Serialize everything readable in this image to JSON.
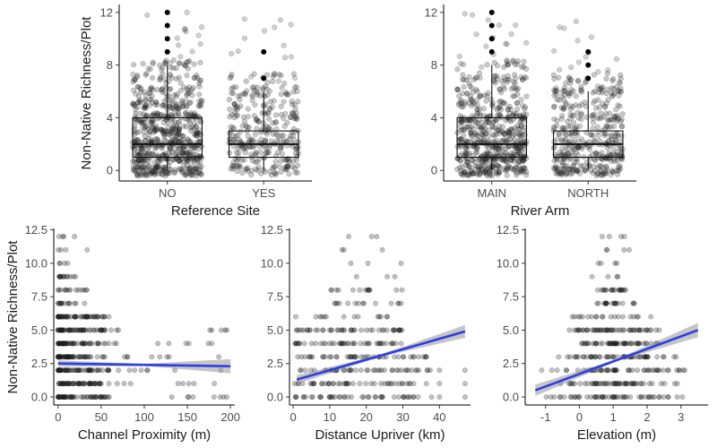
{
  "figure": {
    "shared_ylabel": "Non-Native Richness/Plot"
  },
  "chart_data": [
    {
      "id": "p1",
      "type": "box",
      "xlabel": "Reference Site",
      "ylabel": "Non-Native Richness/Plot",
      "ylim": [
        -0.8,
        12.6
      ],
      "yticks": [
        0,
        4,
        8,
        12
      ],
      "categories": [
        "NO",
        "YES"
      ],
      "boxes": [
        {
          "category": "NO",
          "q1": 1,
          "median": 2,
          "q3": 4,
          "whisker_low": 0,
          "whisker_high": 8,
          "outliers": [
            9,
            10,
            11,
            12
          ],
          "n_jitter": 700
        },
        {
          "category": "YES",
          "q1": 1,
          "median": 2,
          "q3": 3,
          "whisker_low": 0,
          "whisker_high": 6,
          "outliers": [
            7,
            9
          ],
          "n_jitter": 320
        }
      ]
    },
    {
      "id": "p2",
      "type": "box",
      "xlabel": "River Arm",
      "ylabel": "",
      "ylim": [
        -0.8,
        12.6
      ],
      "yticks": [
        0,
        4,
        8,
        12
      ],
      "categories": [
        "MAIN",
        "NORTH"
      ],
      "boxes": [
        {
          "category": "MAIN",
          "q1": 1,
          "median": 2,
          "q3": 4,
          "whisker_low": 0,
          "whisker_high": 8,
          "outliers": [
            9,
            10,
            11,
            12
          ],
          "n_jitter": 620
        },
        {
          "category": "NORTH",
          "q1": 1,
          "median": 2,
          "q3": 3,
          "whisker_low": 0,
          "whisker_high": 6,
          "outliers": [
            7,
            8,
            9
          ],
          "n_jitter": 420
        }
      ]
    },
    {
      "id": "p3",
      "type": "scatter",
      "xlabel": "Channel Proximity (m)",
      "ylabel": "Non-Native Richness/Plot",
      "xlim": [
        -5,
        205
      ],
      "ylim": [
        -0.6,
        12.6
      ],
      "xticks": [
        0,
        50,
        100,
        150,
        200
      ],
      "yticks": [
        0.0,
        2.5,
        5.0,
        7.5,
        10.0,
        12.5
      ],
      "ytick_labels": [
        "0.0",
        "2.5",
        "5.0",
        "7.5",
        "10.0",
        "12.5"
      ],
      "points_summary": {
        "x_range": [
          0,
          200
        ],
        "y_values": [
          0,
          1,
          2,
          3,
          4,
          5,
          6,
          7,
          8,
          9,
          10,
          11,
          12
        ],
        "dense_x_max": 55
      },
      "trend": {
        "x": [
          0,
          200
        ],
        "y": [
          2.5,
          2.3
        ],
        "ci_width_start": 0.15,
        "ci_width_end": 0.45
      },
      "trend_color": "#2a3ee6"
    },
    {
      "id": "p4",
      "type": "scatter",
      "xlabel": "Distance Upriver (km)",
      "ylabel": "",
      "xlim": [
        -1,
        48.5
      ],
      "ylim": [
        -0.6,
        12.6
      ],
      "xticks": [
        0,
        10,
        20,
        30,
        40
      ],
      "yticks": [
        0.0,
        2.5,
        5.0,
        7.5,
        10.0,
        12.5
      ],
      "ytick_labels": [
        "0.0",
        "2.5",
        "5.0",
        "7.5",
        "10.0",
        "12.5"
      ],
      "points_summary": {
        "x_range": [
          0,
          47
        ],
        "y_values": [
          0,
          1,
          2,
          3,
          4,
          5,
          6,
          7,
          8,
          9,
          10,
          11,
          12
        ]
      },
      "trend": {
        "x": [
          1,
          47
        ],
        "y": [
          1.3,
          4.9
        ],
        "ci_width_start": 0.25,
        "ci_width_end": 0.4
      },
      "trend_color": "#2a3ee6"
    },
    {
      "id": "p5",
      "type": "scatter",
      "xlabel": "Elevation (m)",
      "ylabel": "",
      "xlim": [
        -1.6,
        3.8
      ],
      "ylim": [
        -0.6,
        12.6
      ],
      "xticks": [
        -1,
        0,
        1,
        2,
        3
      ],
      "yticks": [
        0.0,
        2.5,
        5.0,
        7.5,
        10.0,
        12.5
      ],
      "ytick_labels": [
        "0.0",
        "2.5",
        "5.0",
        "7.5",
        "10.0",
        "12.5"
      ],
      "points_summary": {
        "x_range": [
          -1.3,
          3.5
        ],
        "y_values": [
          0,
          1,
          2,
          3,
          4,
          5,
          6,
          7,
          8,
          9,
          10,
          11,
          12
        ]
      },
      "trend": {
        "x": [
          -1.3,
          3.5
        ],
        "y": [
          0.5,
          5.0
        ],
        "ci_width_start": 0.35,
        "ci_width_end": 0.45
      },
      "trend_color": "#2a3ee6"
    }
  ]
}
